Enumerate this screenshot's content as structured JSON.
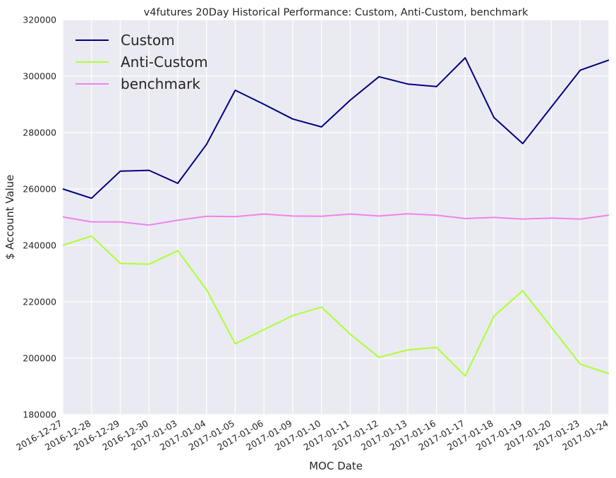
{
  "chart_data": {
    "type": "line",
    "title": "v4futures 20Day Historical Performance: Custom, Anti-Custom, benchmark",
    "xlabel": "MOC Date",
    "ylabel": "$ Account Value",
    "ylim": [
      180000,
      320000
    ],
    "yticks": [
      "180000",
      "200000",
      "220000",
      "240000",
      "260000",
      "280000",
      "300000",
      "320000"
    ],
    "categories": [
      "2016-12-27",
      "2016-12-28",
      "2016-12-29",
      "2016-12-30",
      "2017-01-03",
      "2017-01-04",
      "2017-01-05",
      "2017-01-06",
      "2017-01-09",
      "2017-01-10",
      "2017-01-11",
      "2017-01-12",
      "2017-01-13",
      "2017-01-16",
      "2017-01-17",
      "2017-01-18",
      "2017-01-19",
      "2017-01-20",
      "2017-01-23",
      "2017-01-24"
    ],
    "series": [
      {
        "name": "Custom",
        "color": "#000080",
        "values": [
          260000,
          256700,
          266300,
          266600,
          262000,
          275800,
          295000,
          290000,
          284800,
          282000,
          291500,
          299800,
          297200,
          296300,
          306500,
          285300,
          276100,
          289100,
          302100,
          305700
        ]
      },
      {
        "name": "Anti-Custom",
        "color": "#adff2f",
        "values": [
          240000,
          243300,
          233600,
          233300,
          238100,
          224300,
          205100,
          210100,
          215100,
          218100,
          208500,
          200300,
          202900,
          203800,
          193700,
          214900,
          223900,
          210900,
          197900,
          194500
        ]
      },
      {
        "name": "benchmark",
        "color": "#ee82ee",
        "values": [
          250100,
          248300,
          248300,
          247200,
          248900,
          250300,
          250200,
          251100,
          250400,
          250300,
          251100,
          250400,
          251200,
          250700,
          249500,
          249900,
          249300,
          249700,
          249300,
          250700
        ]
      }
    ],
    "legend_position": "top-left",
    "grid": true,
    "background": "#eaeaf2"
  }
}
